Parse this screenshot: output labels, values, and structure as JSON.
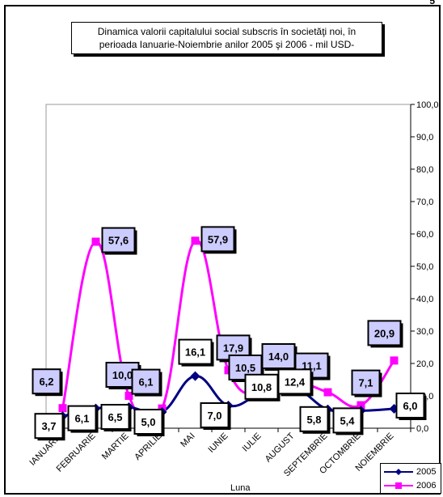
{
  "title_lines": [
    "Dinamica  valorii capitalului social subscris în societăţi noi,  în",
    "perioada Ianuarie-Noiembrie anilor 2005 şi 2006  - mil  USD-"
  ],
  "corner_text": "5",
  "legend": {
    "s2005": "2005",
    "s2006": "2006"
  },
  "xlabel": "Luna",
  "colors": {
    "s2005": "#000080",
    "s2006": "#ff00ff",
    "label2006_bg": "#ccccff"
  },
  "chart_data": {
    "type": "line",
    "title": "Dinamica  valorii capitalului social subscris în societăţi noi,  în perioada Ianuarie-Noiembrie anilor 2005 şi 2006  - mil  USD-",
    "xlabel": "Luna",
    "ylabel": "",
    "ylim": [
      0,
      100
    ],
    "yticks": [
      "0,0",
      "10,0",
      "20,0",
      "30,0",
      "40,0",
      "50,0",
      "60,0",
      "70,0",
      "80,0",
      "90,0",
      "100,0"
    ],
    "grid": false,
    "legend_position": "bottom-right",
    "categories": [
      "IANUARIE",
      "FEBRUARIE",
      "MARTIE",
      "APRILIE",
      "MAI",
      "IUNIE",
      "IULIE",
      "AUGUST",
      "SEPTEMBRIE",
      "OCTOMBRIE",
      "NOIEMBRIE"
    ],
    "series": [
      {
        "name": "2005",
        "values": [
          3.7,
          6.1,
          6.5,
          5.0,
          16.1,
          7.0,
          10.8,
          12.4,
          5.8,
          5.4,
          6.0
        ],
        "labels": [
          "3,7",
          "6,1",
          "6,5",
          "5,0",
          "16,1",
          "7,0",
          "10,8",
          "12,4",
          "5,8",
          "5,4",
          "6,0"
        ]
      },
      {
        "name": "2006",
        "values": [
          6.2,
          57.6,
          10.0,
          6.1,
          57.9,
          17.9,
          10.5,
          14.0,
          11.1,
          7.1,
          20.9
        ],
        "labels": [
          "6,2",
          "57,6",
          "10,0",
          "6,1",
          "57,9",
          "17,9",
          "10,5",
          "14,0",
          "11,1",
          "7,1",
          "20,9"
        ]
      }
    ]
  }
}
